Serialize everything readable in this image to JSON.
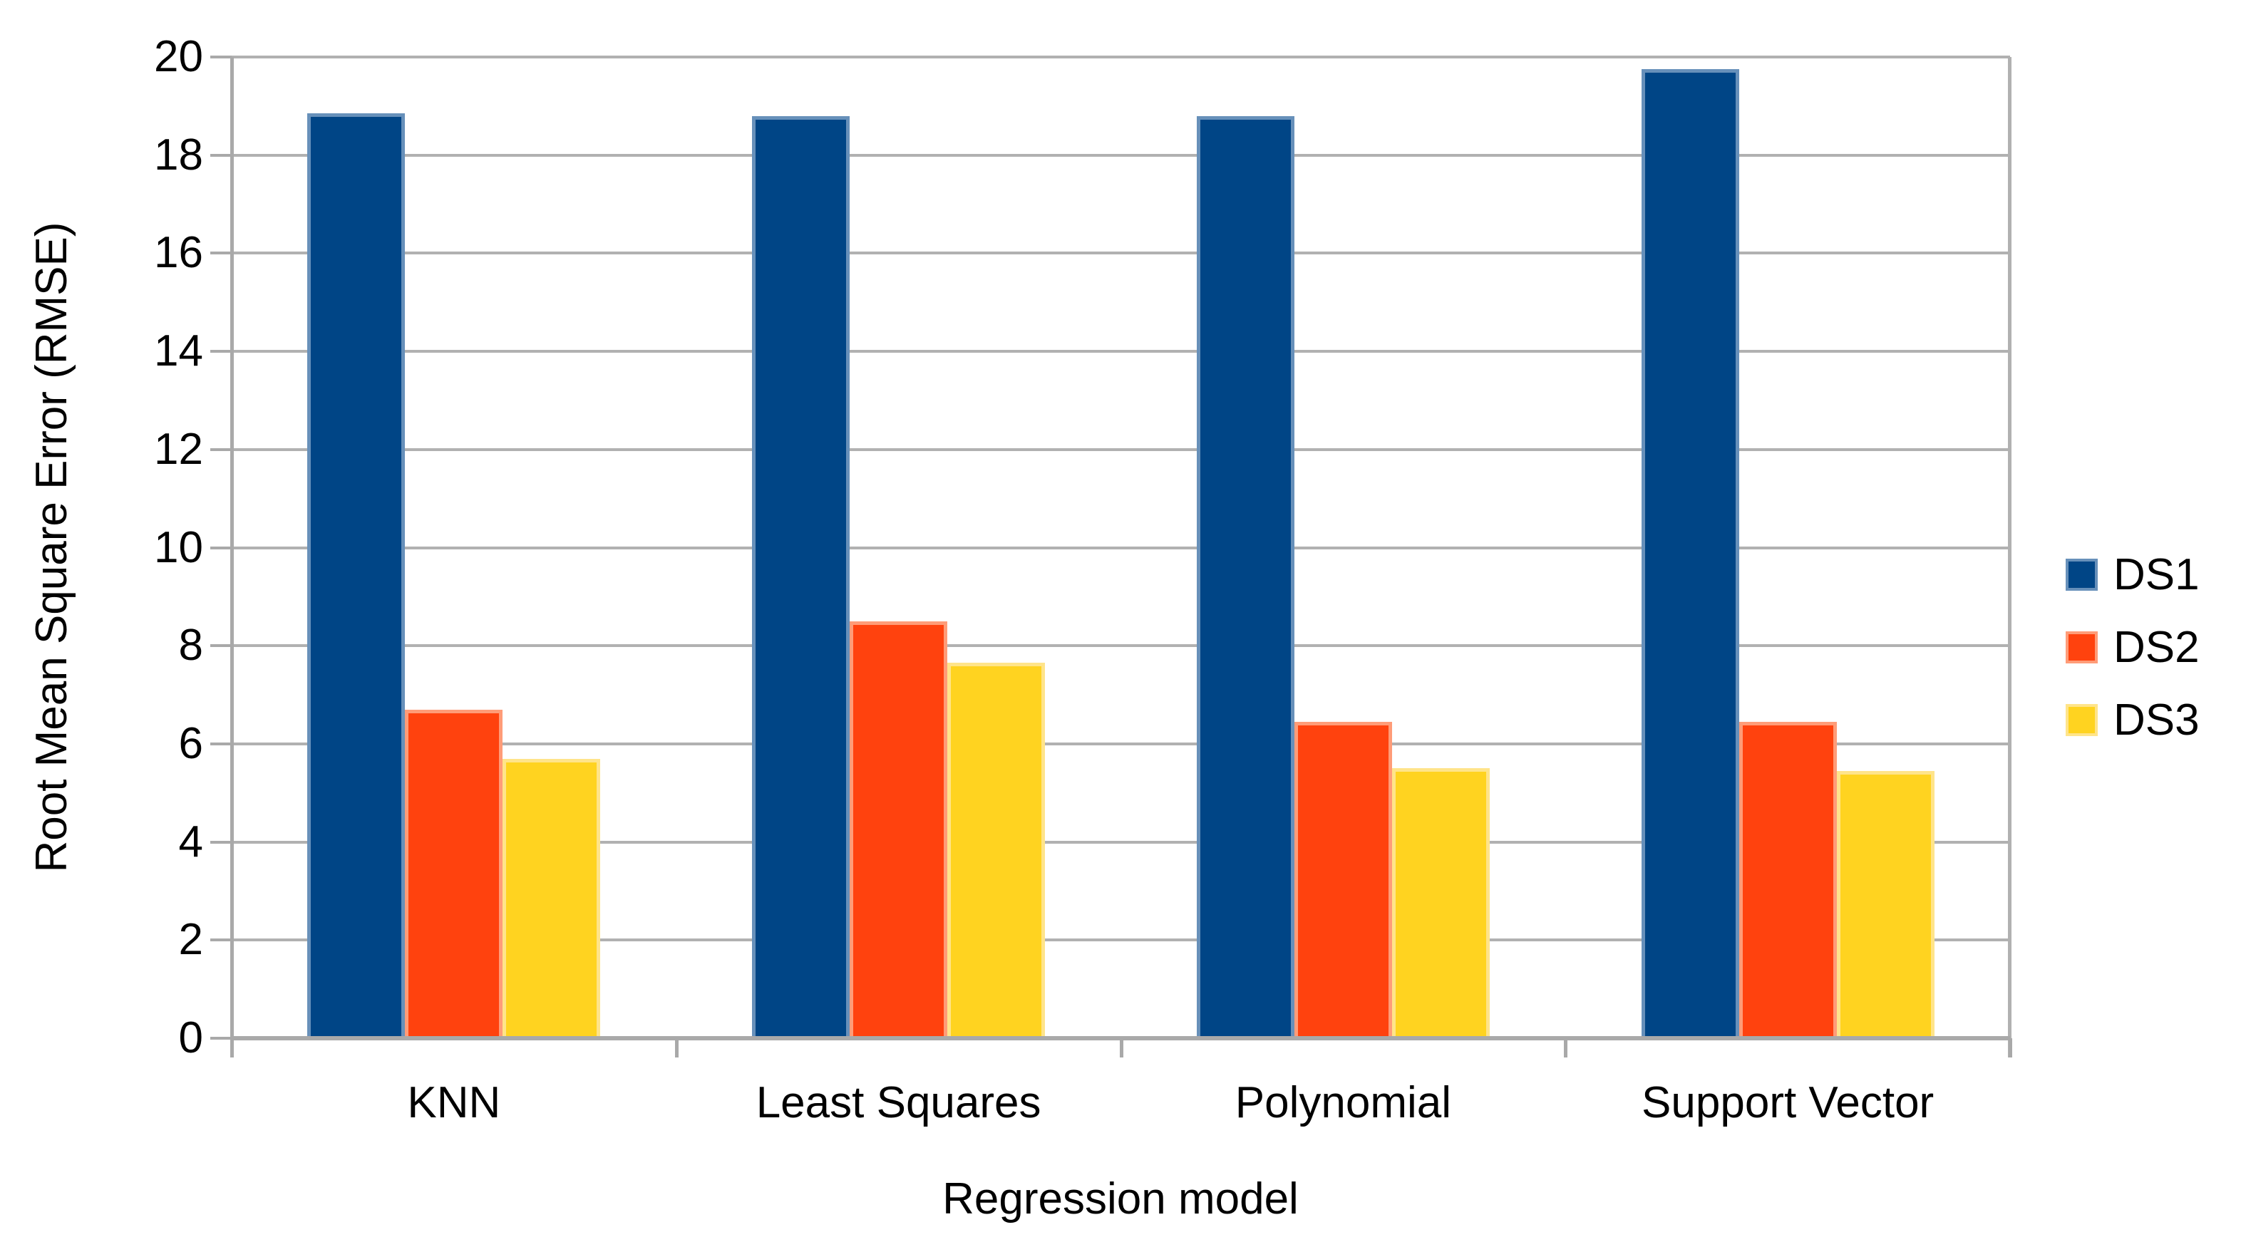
{
  "page": {
    "background": "#ffffff",
    "text_color": "#000000"
  },
  "chart_data": {
    "type": "bar",
    "title": "",
    "categories": [
      "KNN",
      "Least Squares",
      "Polynomial",
      "Support Vector"
    ],
    "series": [
      {
        "name": "DS1",
        "color": "#004586",
        "edge_color": "#6790ba",
        "values": [
          18.85,
          18.8,
          18.8,
          19.75
        ]
      },
      {
        "name": "DS2",
        "color": "#ff420e",
        "edge_color": "#ff9c78",
        "values": [
          6.7,
          8.5,
          6.45,
          6.45
        ]
      },
      {
        "name": "DS3",
        "color": "#ffd320",
        "edge_color": "#ffe48a",
        "values": [
          5.7,
          7.65,
          5.5,
          5.45
        ]
      }
    ],
    "xlabel": "Regression model",
    "ylabel": "Root Mean Square Error (RMSE)",
    "ylim": [
      0,
      20
    ],
    "ytick_step": 2,
    "yticks": [
      0,
      2,
      4,
      6,
      8,
      10,
      12,
      14,
      16,
      18,
      20
    ],
    "grid": "horizontal-only",
    "gridline_color": "#b1b1b1",
    "axis_color": "#a9a9a9",
    "legend_position": "right",
    "legend_labels": [
      "DS1",
      "DS2",
      "DS3"
    ]
  }
}
